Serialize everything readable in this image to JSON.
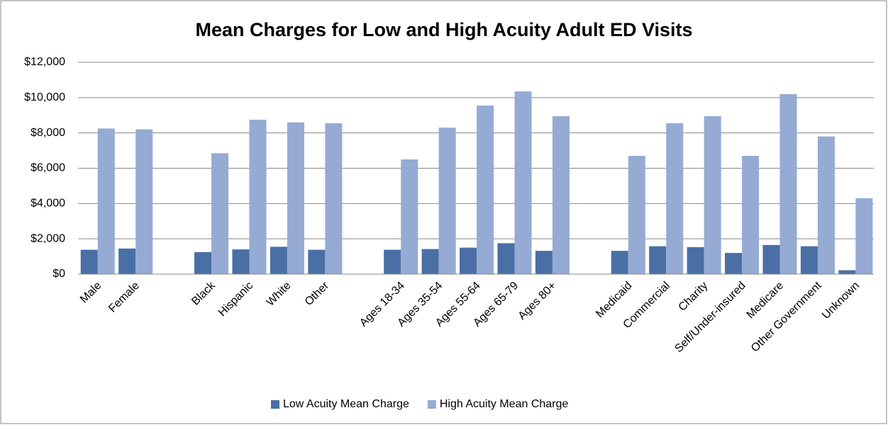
{
  "chart_data": {
    "type": "bar",
    "title": "Mean Charges for Low and High Acuity Adult ED Visits",
    "categories": [
      "Male",
      "Female",
      null,
      "Black",
      "Hispanic",
      "White",
      "Other",
      null,
      "Ages 18-34",
      "Ages 35-54",
      "Ages 55-64",
      "Ages 65-79",
      "Ages 80+",
      null,
      "Medicaid",
      "Commercial",
      "Charity",
      "Self/Under-insured",
      "Medicare",
      "Other Government",
      "Unknown"
    ],
    "series": [
      {
        "name": "Low Acuity Mean Charge",
        "color": "#4a6fa5",
        "values": [
          1380,
          1450,
          null,
          1250,
          1400,
          1550,
          1380,
          null,
          1380,
          1420,
          1500,
          1750,
          1320,
          null,
          1320,
          1580,
          1530,
          1200,
          1650,
          1580,
          220
        ]
      },
      {
        "name": "High Acuity Mean Charge",
        "color": "#95abd3",
        "values": [
          8250,
          8200,
          null,
          6850,
          8750,
          8600,
          8550,
          null,
          6500,
          8300,
          9550,
          10350,
          8950,
          null,
          6700,
          8550,
          8950,
          6700,
          10200,
          7800,
          4300
        ]
      }
    ],
    "ylim": [
      0,
      12000
    ],
    "yticks": [
      {
        "value": 0,
        "label": "$0"
      },
      {
        "value": 2000,
        "label": "$2,000"
      },
      {
        "value": 4000,
        "label": "$4,000"
      },
      {
        "value": 6000,
        "label": "$6,000"
      },
      {
        "value": 8000,
        "label": "$8,000"
      },
      {
        "value": 10000,
        "label": "$10,000"
      },
      {
        "value": 12000,
        "label": "$12,000"
      }
    ],
    "grid": true,
    "legend": "bottom"
  }
}
